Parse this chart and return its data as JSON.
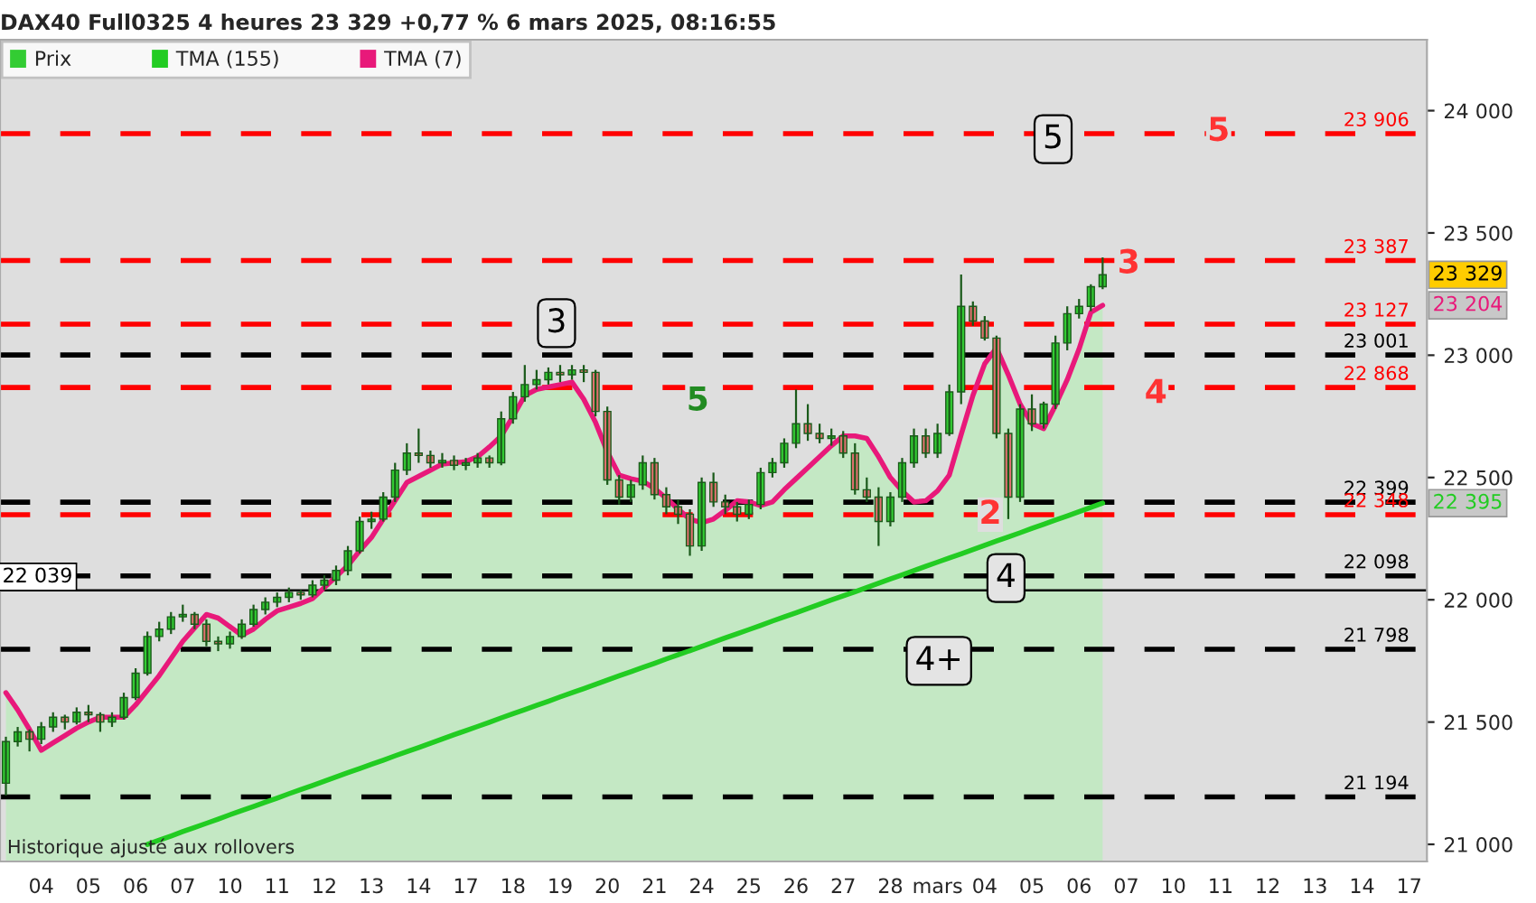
{
  "chart_data": {
    "type": "candlestick",
    "title": "DAX40 Full0325 4 heures 23 329 +0,77 % 6 mars 2025, 08:16:55",
    "categories": [
      null,
      null,
      null,
      "04",
      null,
      null,
      null,
      "05",
      null,
      null,
      null,
      "06",
      null,
      null,
      null,
      "07",
      null,
      null,
      null,
      "10",
      null,
      null,
      null,
      "11",
      null,
      null,
      null,
      "12",
      null,
      null,
      null,
      "13",
      null,
      null,
      null,
      "14",
      null,
      null,
      null,
      "17",
      null,
      null,
      null,
      "18",
      null,
      null,
      null,
      "19",
      null,
      null,
      null,
      "20",
      null,
      null,
      null,
      "21",
      null,
      null,
      null,
      "24",
      null,
      null,
      null,
      "25",
      null,
      null,
      null,
      "26",
      null,
      null,
      null,
      "27",
      null,
      null,
      null,
      "28",
      null,
      null,
      null,
      "mars",
      null,
      null,
      null,
      "04",
      null,
      null,
      null,
      "05",
      null,
      null,
      null,
      "06",
      null,
      null,
      null,
      "07",
      null,
      null,
      null,
      "10",
      null,
      null,
      null,
      "11",
      null,
      null,
      null,
      "12",
      null,
      null,
      null,
      "13",
      null,
      null,
      null,
      "14",
      null,
      null,
      null,
      "17",
      null
    ],
    "ylim": [
      20930,
      24290
    ],
    "yticks": [
      {
        "value": 21000,
        "label": "21 000"
      },
      {
        "value": 21500,
        "label": "21 500"
      },
      {
        "value": 22000,
        "label": "22 000"
      },
      {
        "value": 22500,
        "label": "22 500"
      },
      {
        "value": 23000,
        "label": "23 000"
      },
      {
        "value": 23500,
        "label": "23 500"
      },
      {
        "value": 24000,
        "label": "24 000"
      }
    ],
    "legend": "top left",
    "series": [
      {
        "name": "Prix",
        "color": "#33cc33",
        "colors": [
          "#33cc33",
          "#33cc33",
          "#e07070",
          "#33cc33",
          "#33cc33",
          "#e07070",
          "#33cc33",
          "#e07070",
          "#e07070",
          "#33cc33",
          "#33cc33",
          "#33cc33",
          "#33cc33",
          "#33cc33",
          "#33cc33",
          "#33cc33",
          "#e07070",
          "#e07070",
          "#e07070",
          "#33cc33",
          "#33cc33",
          "#33cc33",
          "#33cc33",
          "#33cc33",
          "#33cc33",
          "#e07070",
          "#33cc33",
          "#33cc33",
          "#33cc33",
          "#33cc33",
          "#33cc33",
          "#33cc33",
          "#33cc33",
          "#33cc33",
          "#33cc33",
          "#e07070",
          "#e07070",
          "#33cc33",
          "#e07070",
          "#33cc33",
          "#33cc33",
          "#e07070",
          "#33cc33",
          "#33cc33",
          "#33cc33",
          "#33cc33",
          "#33cc33",
          "#e07070",
          "#33cc33",
          "#e07070",
          "#e07070",
          "#e07070",
          "#e07070",
          "#33cc33",
          "#33cc33",
          "#e07070",
          "#e07070",
          "#e07070",
          "#e07070",
          "#33cc33",
          "#e07070",
          "#e07070",
          "#e07070",
          "#33cc33",
          "#33cc33",
          "#33cc33",
          "#33cc33",
          "#33cc33",
          "#e07070",
          "#e07070",
          "#33cc33",
          "#e07070",
          "#e07070",
          "#e07070",
          "#e07070",
          "#33cc33",
          "#33cc33",
          "#33cc33",
          "#e07070",
          "#33cc33",
          "#33cc33",
          "#33cc33",
          "#e07070",
          "#e07070",
          "#e07070",
          "#e07070",
          "#33cc33",
          "#e07070",
          "#33cc33",
          "#33cc33",
          "#33cc33",
          "#33cc33",
          "#33cc33",
          "#33cc33",
          null,
          null,
          null,
          null,
          null,
          null,
          null,
          null,
          null,
          null,
          null,
          null,
          null,
          null,
          null,
          null,
          null,
          null,
          null,
          null,
          null,
          null,
          null,
          null,
          null,
          null,
          null
        ],
        "ohlc": [
          [
            21250,
            21440,
            21200,
            21420
          ],
          [
            21420,
            21480,
            21400,
            21460
          ],
          [
            21460,
            21470,
            21380,
            21430
          ],
          [
            21430,
            21500,
            21410,
            21480
          ],
          [
            21480,
            21540,
            21460,
            21520
          ],
          [
            21520,
            21530,
            21470,
            21500
          ],
          [
            21500,
            21560,
            21490,
            21540
          ],
          [
            21540,
            21570,
            21500,
            21530
          ],
          [
            21530,
            21540,
            21460,
            21500
          ],
          [
            21500,
            21540,
            21480,
            21520
          ],
          [
            21520,
            21620,
            21510,
            21600
          ],
          [
            21600,
            21720,
            21590,
            21700
          ],
          [
            21700,
            21870,
            21690,
            21850
          ],
          [
            21850,
            21910,
            21830,
            21880
          ],
          [
            21880,
            21950,
            21860,
            21930
          ],
          [
            21930,
            21980,
            21910,
            21940
          ],
          [
            21940,
            21950,
            21880,
            21900
          ],
          [
            21900,
            21920,
            21810,
            21830
          ],
          [
            21830,
            21850,
            21790,
            21820
          ],
          [
            21820,
            21870,
            21800,
            21850
          ],
          [
            21850,
            21920,
            21840,
            21900
          ],
          [
            21900,
            21980,
            21890,
            21960
          ],
          [
            21960,
            22010,
            21940,
            21990
          ],
          [
            21990,
            22030,
            21970,
            22010
          ],
          [
            22010,
            22050,
            21990,
            22030
          ],
          [
            22030,
            22040,
            22000,
            22020
          ],
          [
            22020,
            22080,
            22010,
            22060
          ],
          [
            22060,
            22100,
            22040,
            22080
          ],
          [
            22080,
            22140,
            22060,
            22120
          ],
          [
            22120,
            22220,
            22100,
            22200
          ],
          [
            22200,
            22340,
            22190,
            22320
          ],
          [
            22320,
            22360,
            22290,
            22330
          ],
          [
            22330,
            22440,
            22320,
            22420
          ],
          [
            22420,
            22560,
            22400,
            22530
          ],
          [
            22530,
            22640,
            22510,
            22600
          ],
          [
            22600,
            22700,
            22560,
            22590
          ],
          [
            22590,
            22610,
            22540,
            22560
          ],
          [
            22560,
            22600,
            22540,
            22570
          ],
          [
            22570,
            22590,
            22530,
            22550
          ],
          [
            22550,
            22580,
            22530,
            22560
          ],
          [
            22560,
            22600,
            22540,
            22580
          ],
          [
            22580,
            22590,
            22540,
            22560
          ],
          [
            22560,
            22770,
            22550,
            22740
          ],
          [
            22740,
            22850,
            22720,
            22830
          ],
          [
            22830,
            22960,
            22810,
            22880
          ],
          [
            22880,
            22940,
            22860,
            22900
          ],
          [
            22900,
            22950,
            22880,
            22930
          ],
          [
            22930,
            22960,
            22890,
            22920
          ],
          [
            22920,
            22960,
            22900,
            22940
          ],
          [
            22940,
            22960,
            22890,
            22930
          ],
          [
            22930,
            22940,
            22750,
            22770
          ],
          [
            22770,
            22790,
            22470,
            22490
          ],
          [
            22490,
            22510,
            22390,
            22420
          ],
          [
            22420,
            22490,
            22400,
            22470
          ],
          [
            22470,
            22590,
            22450,
            22560
          ],
          [
            22560,
            22580,
            22410,
            22430
          ],
          [
            22430,
            22460,
            22350,
            22380
          ],
          [
            22380,
            22410,
            22310,
            22350
          ],
          [
            22350,
            22370,
            22180,
            22220
          ],
          [
            22220,
            22500,
            22200,
            22480
          ],
          [
            22480,
            22520,
            22380,
            22400
          ],
          [
            22400,
            22430,
            22350,
            22380
          ],
          [
            22380,
            22400,
            22320,
            22350
          ],
          [
            22350,
            22410,
            22330,
            22390
          ],
          [
            22390,
            22540,
            22370,
            22520
          ],
          [
            22520,
            22580,
            22500,
            22560
          ],
          [
            22560,
            22660,
            22540,
            22640
          ],
          [
            22640,
            22860,
            22620,
            22720
          ],
          [
            22720,
            22800,
            22650,
            22680
          ],
          [
            22680,
            22720,
            22640,
            22660
          ],
          [
            22660,
            22700,
            22630,
            22670
          ],
          [
            22670,
            22690,
            22580,
            22600
          ],
          [
            22600,
            22640,
            22430,
            22450
          ],
          [
            22450,
            22500,
            22400,
            22420
          ],
          [
            22420,
            22460,
            22220,
            22320
          ],
          [
            22320,
            22440,
            22300,
            22420
          ],
          [
            22420,
            22580,
            22400,
            22560
          ],
          [
            22560,
            22700,
            22540,
            22670
          ],
          [
            22670,
            22700,
            22580,
            22600
          ],
          [
            22600,
            22720,
            22580,
            22680
          ],
          [
            22680,
            22880,
            22670,
            22850
          ],
          [
            22850,
            23330,
            22800,
            23200
          ],
          [
            23200,
            23220,
            23120,
            23140
          ],
          [
            23140,
            23160,
            23060,
            23070
          ],
          [
            23070,
            23080,
            22660,
            22680
          ],
          [
            22680,
            22700,
            22330,
            22420
          ],
          [
            22420,
            22800,
            22400,
            22780
          ],
          [
            22780,
            22840,
            22690,
            22720
          ],
          [
            22720,
            22810,
            22700,
            22800
          ],
          [
            22800,
            23080,
            22780,
            23050
          ],
          [
            23050,
            23200,
            23020,
            23170
          ],
          [
            23170,
            23230,
            23150,
            23200
          ],
          [
            23200,
            23290,
            23180,
            23280
          ],
          [
            23280,
            23400,
            23270,
            23329
          ],
          null,
          null,
          null,
          null,
          null,
          null,
          null,
          null,
          null,
          null,
          null,
          null,
          null,
          null,
          null,
          null,
          null,
          null,
          null,
          null,
          null,
          null,
          null,
          null,
          null,
          null,
          null
        ]
      },
      {
        "name": "TMA (155)",
        "type": "line",
        "color": "#22cc22",
        "values": [
          null,
          null,
          null,
          null,
          null,
          null,
          null,
          null,
          null,
          null,
          null,
          null,
          21000,
          21017,
          21034,
          21052,
          21069,
          21086,
          21103,
          21121,
          21138,
          21155,
          21172,
          21189,
          21207,
          21224,
          21241,
          21258,
          21276,
          21293,
          21310,
          21327,
          21344,
          21362,
          21379,
          21396,
          21413,
          21431,
          21448,
          21465,
          21482,
          21499,
          21517,
          21534,
          21551,
          21568,
          21585,
          21603,
          21620,
          21637,
          21654,
          21672,
          21689,
          21706,
          21723,
          21740,
          21758,
          21775,
          21792,
          21809,
          21827,
          21844,
          21861,
          21878,
          21895,
          21913,
          21930,
          21947,
          21964,
          21982,
          21999,
          22016,
          22033,
          22050,
          22068,
          22085,
          22102,
          22119,
          22137,
          22154,
          22171,
          22188,
          22205,
          22223,
          22240,
          22257,
          22274,
          22292,
          22309,
          22326,
          22343,
          22360,
          22378,
          22395,
          null,
          null,
          null,
          null,
          null,
          null,
          null,
          null,
          null,
          null,
          null,
          null,
          null,
          null,
          null,
          null,
          null,
          null,
          null,
          null,
          null,
          null,
          null,
          null,
          null,
          null,
          null
        ]
      },
      {
        "name": "TMA (7)",
        "type": "area",
        "color": "#e8197a",
        "values": [
          21620,
          21550,
          21470,
          21385,
          21415,
          21445,
          21475,
          21500,
          21520,
          21520,
          21520,
          21570,
          21630,
          21690,
          21760,
          21830,
          21885,
          21940,
          21925,
          21890,
          21855,
          21880,
          21920,
          21955,
          21970,
          21985,
          22005,
          22050,
          22095,
          22140,
          22200,
          22255,
          22330,
          22405,
          22480,
          22505,
          22530,
          22555,
          22560,
          22565,
          22585,
          22625,
          22670,
          22750,
          22835,
          22860,
          22870,
          22880,
          22890,
          22820,
          22725,
          22605,
          22510,
          22495,
          22485,
          22455,
          22415,
          22370,
          22330,
          22315,
          22330,
          22365,
          22405,
          22400,
          22385,
          22400,
          22450,
          22495,
          22540,
          22585,
          22630,
          22670,
          22670,
          22660,
          22585,
          22500,
          22445,
          22400,
          22405,
          22445,
          22510,
          22675,
          22835,
          22965,
          23030,
          22920,
          22800,
          22720,
          22700,
          22795,
          22900,
          23025,
          23175,
          23204,
          null,
          null,
          null,
          null,
          null,
          null,
          null,
          null,
          null,
          null,
          null,
          null,
          null,
          null,
          null,
          null,
          null,
          null,
          null,
          null,
          null,
          null,
          null,
          null,
          null,
          null,
          null
        ]
      }
    ],
    "ref_lines": [
      {
        "axis": "y",
        "value": 23906,
        "label": "23 906",
        "color": "#ff0000",
        "line_style": "dashed"
      },
      {
        "axis": "y",
        "value": 23387,
        "label": "23 387",
        "color": "#ff0000",
        "line_style": "dashed"
      },
      {
        "axis": "y",
        "value": 23127,
        "label": "23 127",
        "color": "#ff0000",
        "line_style": "dashed"
      },
      {
        "axis": "y",
        "value": 23001,
        "label": "23 001",
        "color": "#000000",
        "line_style": "dashed"
      },
      {
        "axis": "y",
        "value": 22868,
        "label": "22 868",
        "color": "#ff0000",
        "line_style": "dashed"
      },
      {
        "axis": "y",
        "value": 22399,
        "label": "22 399",
        "color": "#000000",
        "line_style": "dashed"
      },
      {
        "axis": "y",
        "value": 22348,
        "label": "22 348",
        "color": "#ff0000",
        "line_style": "dashed"
      },
      {
        "axis": "y",
        "value": 22098,
        "label": "22 098",
        "color": "#000000",
        "line_style": "dashed"
      },
      {
        "axis": "y",
        "value": 22039,
        "label": "22 039",
        "color": "#000000",
        "line_style": "solid"
      },
      {
        "axis": "y",
        "value": 21798,
        "label": "21 798",
        "color": "#000000",
        "line_style": "dashed"
      },
      {
        "axis": "y",
        "value": 21194,
        "label": "21 194",
        "color": "#000000",
        "line_style": "dashed"
      }
    ],
    "annotations": [
      {
        "text": "23 329",
        "y": 23329
      },
      {
        "text": "23 204",
        "y": 23204
      },
      {
        "text": "22 395",
        "y": 22395
      },
      "5",
      "3",
      "4",
      "4+",
      "5",
      "3",
      "4",
      "5",
      "2",
      "Historique ajusté aux rollovers"
    ]
  }
}
